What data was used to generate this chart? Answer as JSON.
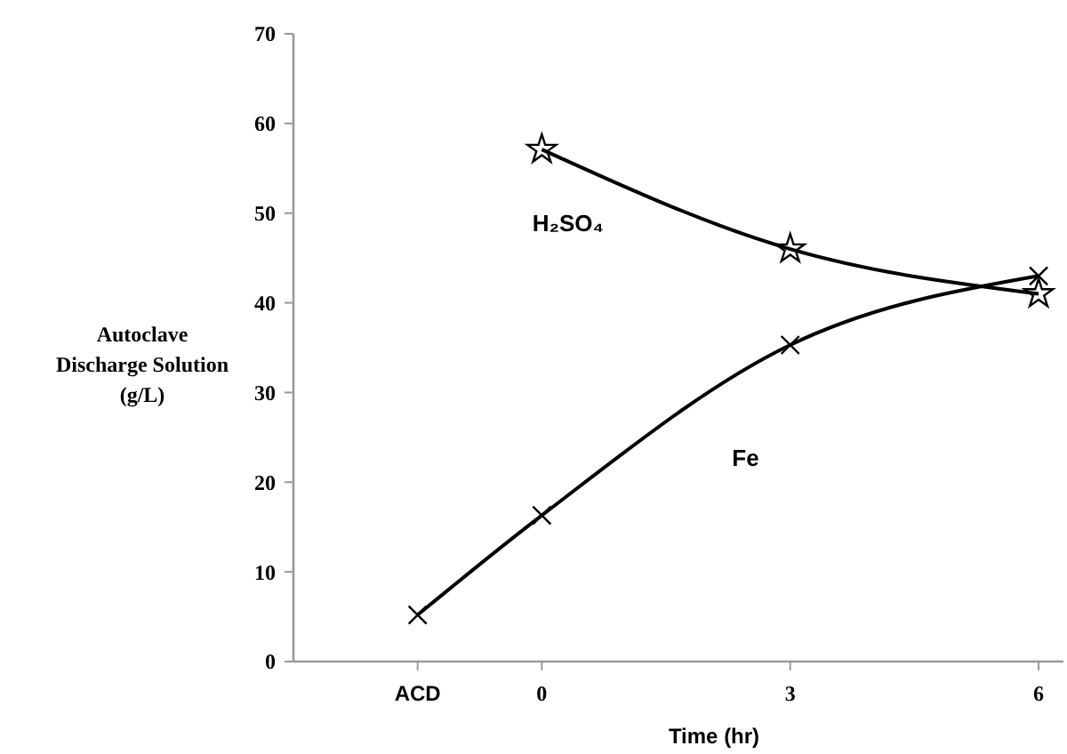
{
  "chart_data": {
    "type": "line",
    "xlabel": "Time (hr)",
    "ylabel": "Autoclave Discharge Solution (g/L)",
    "xlim": [
      -3,
      6.3
    ],
    "xticks": [
      {
        "value": -1.5,
        "label": "ACD"
      },
      0,
      3,
      6
    ],
    "ylim": [
      0,
      70
    ],
    "yticks": [
      0,
      10,
      20,
      30,
      40,
      50,
      60,
      70
    ],
    "grid": false,
    "series": [
      {
        "name": "H₂SO₄",
        "color": "#000000",
        "marker": "star",
        "x": [
          0,
          3,
          6
        ],
        "values": [
          57.1,
          46,
          41
        ]
      },
      {
        "name": "Fe",
        "color": "#000000",
        "marker": "cross",
        "x": [
          -1.5,
          0,
          3,
          6
        ],
        "values": [
          5.2,
          16.3,
          35.3,
          43
        ]
      }
    ]
  }
}
